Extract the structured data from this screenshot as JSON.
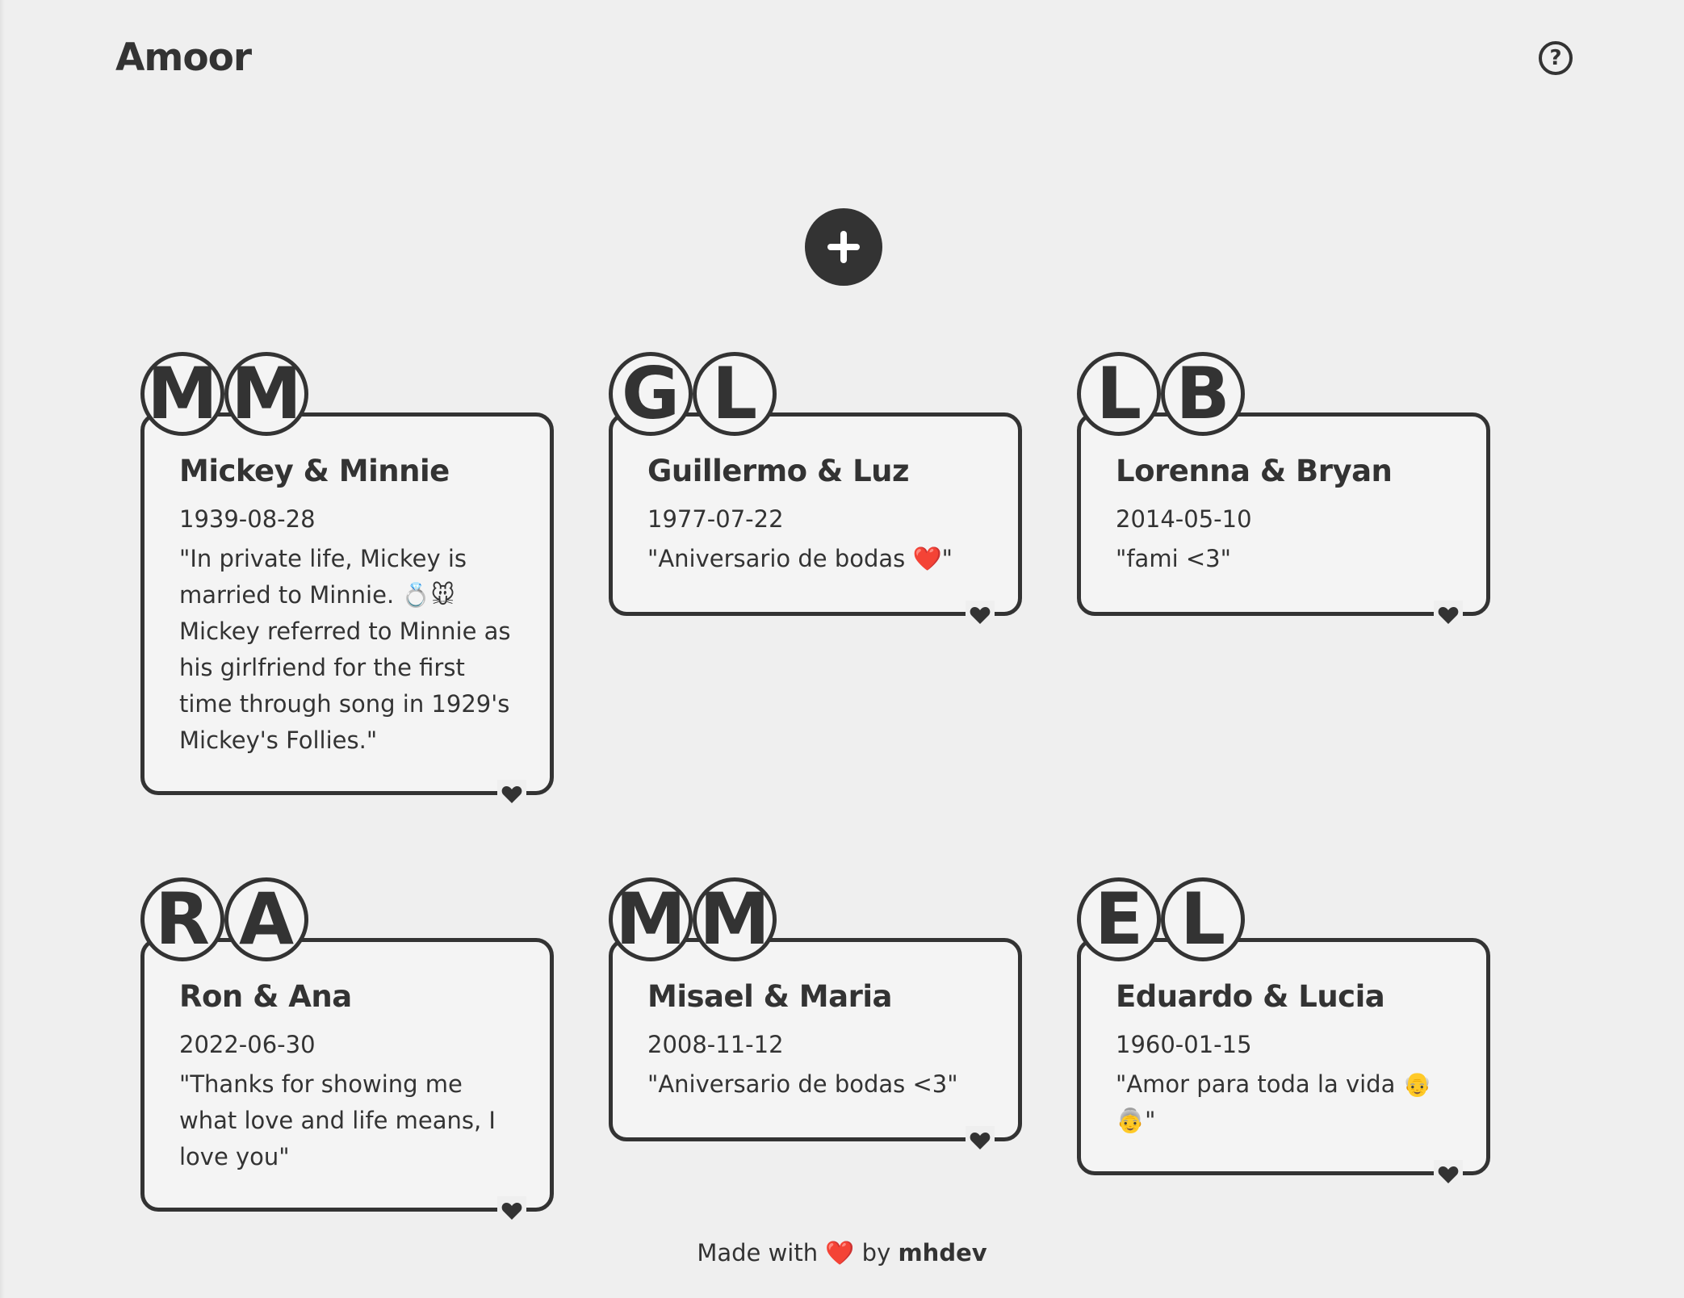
{
  "header": {
    "title": "Amoor",
    "help_symbol": "?"
  },
  "add_button": {
    "icon": "plus-icon"
  },
  "cards": [
    {
      "initials": [
        "M",
        "M"
      ],
      "title": "Mickey & Minnie",
      "date": "1939-08-28",
      "note": "\"In private life, Mickey is married to Minnie. 💍🐭 Mickey referred to Minnie as his girlfriend for the first time through song in 1929's Mickey's Follies.\""
    },
    {
      "initials": [
        "G",
        "L"
      ],
      "title": "Guillermo & Luz",
      "date": "1977-07-22",
      "note": "\"Aniversario de bodas ❤️\""
    },
    {
      "initials": [
        "L",
        "B"
      ],
      "title": "Lorenna & Bryan",
      "date": "2014-05-10",
      "note": "\"fami <3\""
    },
    {
      "initials": [
        "R",
        "A"
      ],
      "title": "Ron & Ana",
      "date": "2022-06-30",
      "note": "\"Thanks for showing me what love and life means, I love you\""
    },
    {
      "initials": [
        "M",
        "M"
      ],
      "title": "Misael & Maria",
      "date": "2008-11-12",
      "note": "\"Aniversario de bodas <3\""
    },
    {
      "initials": [
        "E",
        "L"
      ],
      "title": "Eduardo & Lucia",
      "date": "1960-01-15",
      "note": "\"Amor para toda la vida 👴👵\""
    }
  ],
  "footer": {
    "prefix": "Made with",
    "heart": "❤️",
    "by": "by",
    "author": "mhdev"
  },
  "colors": {
    "background": "#efefef",
    "ink": "#333333",
    "card": "#f4f4f4",
    "heart": "#e0233a"
  }
}
